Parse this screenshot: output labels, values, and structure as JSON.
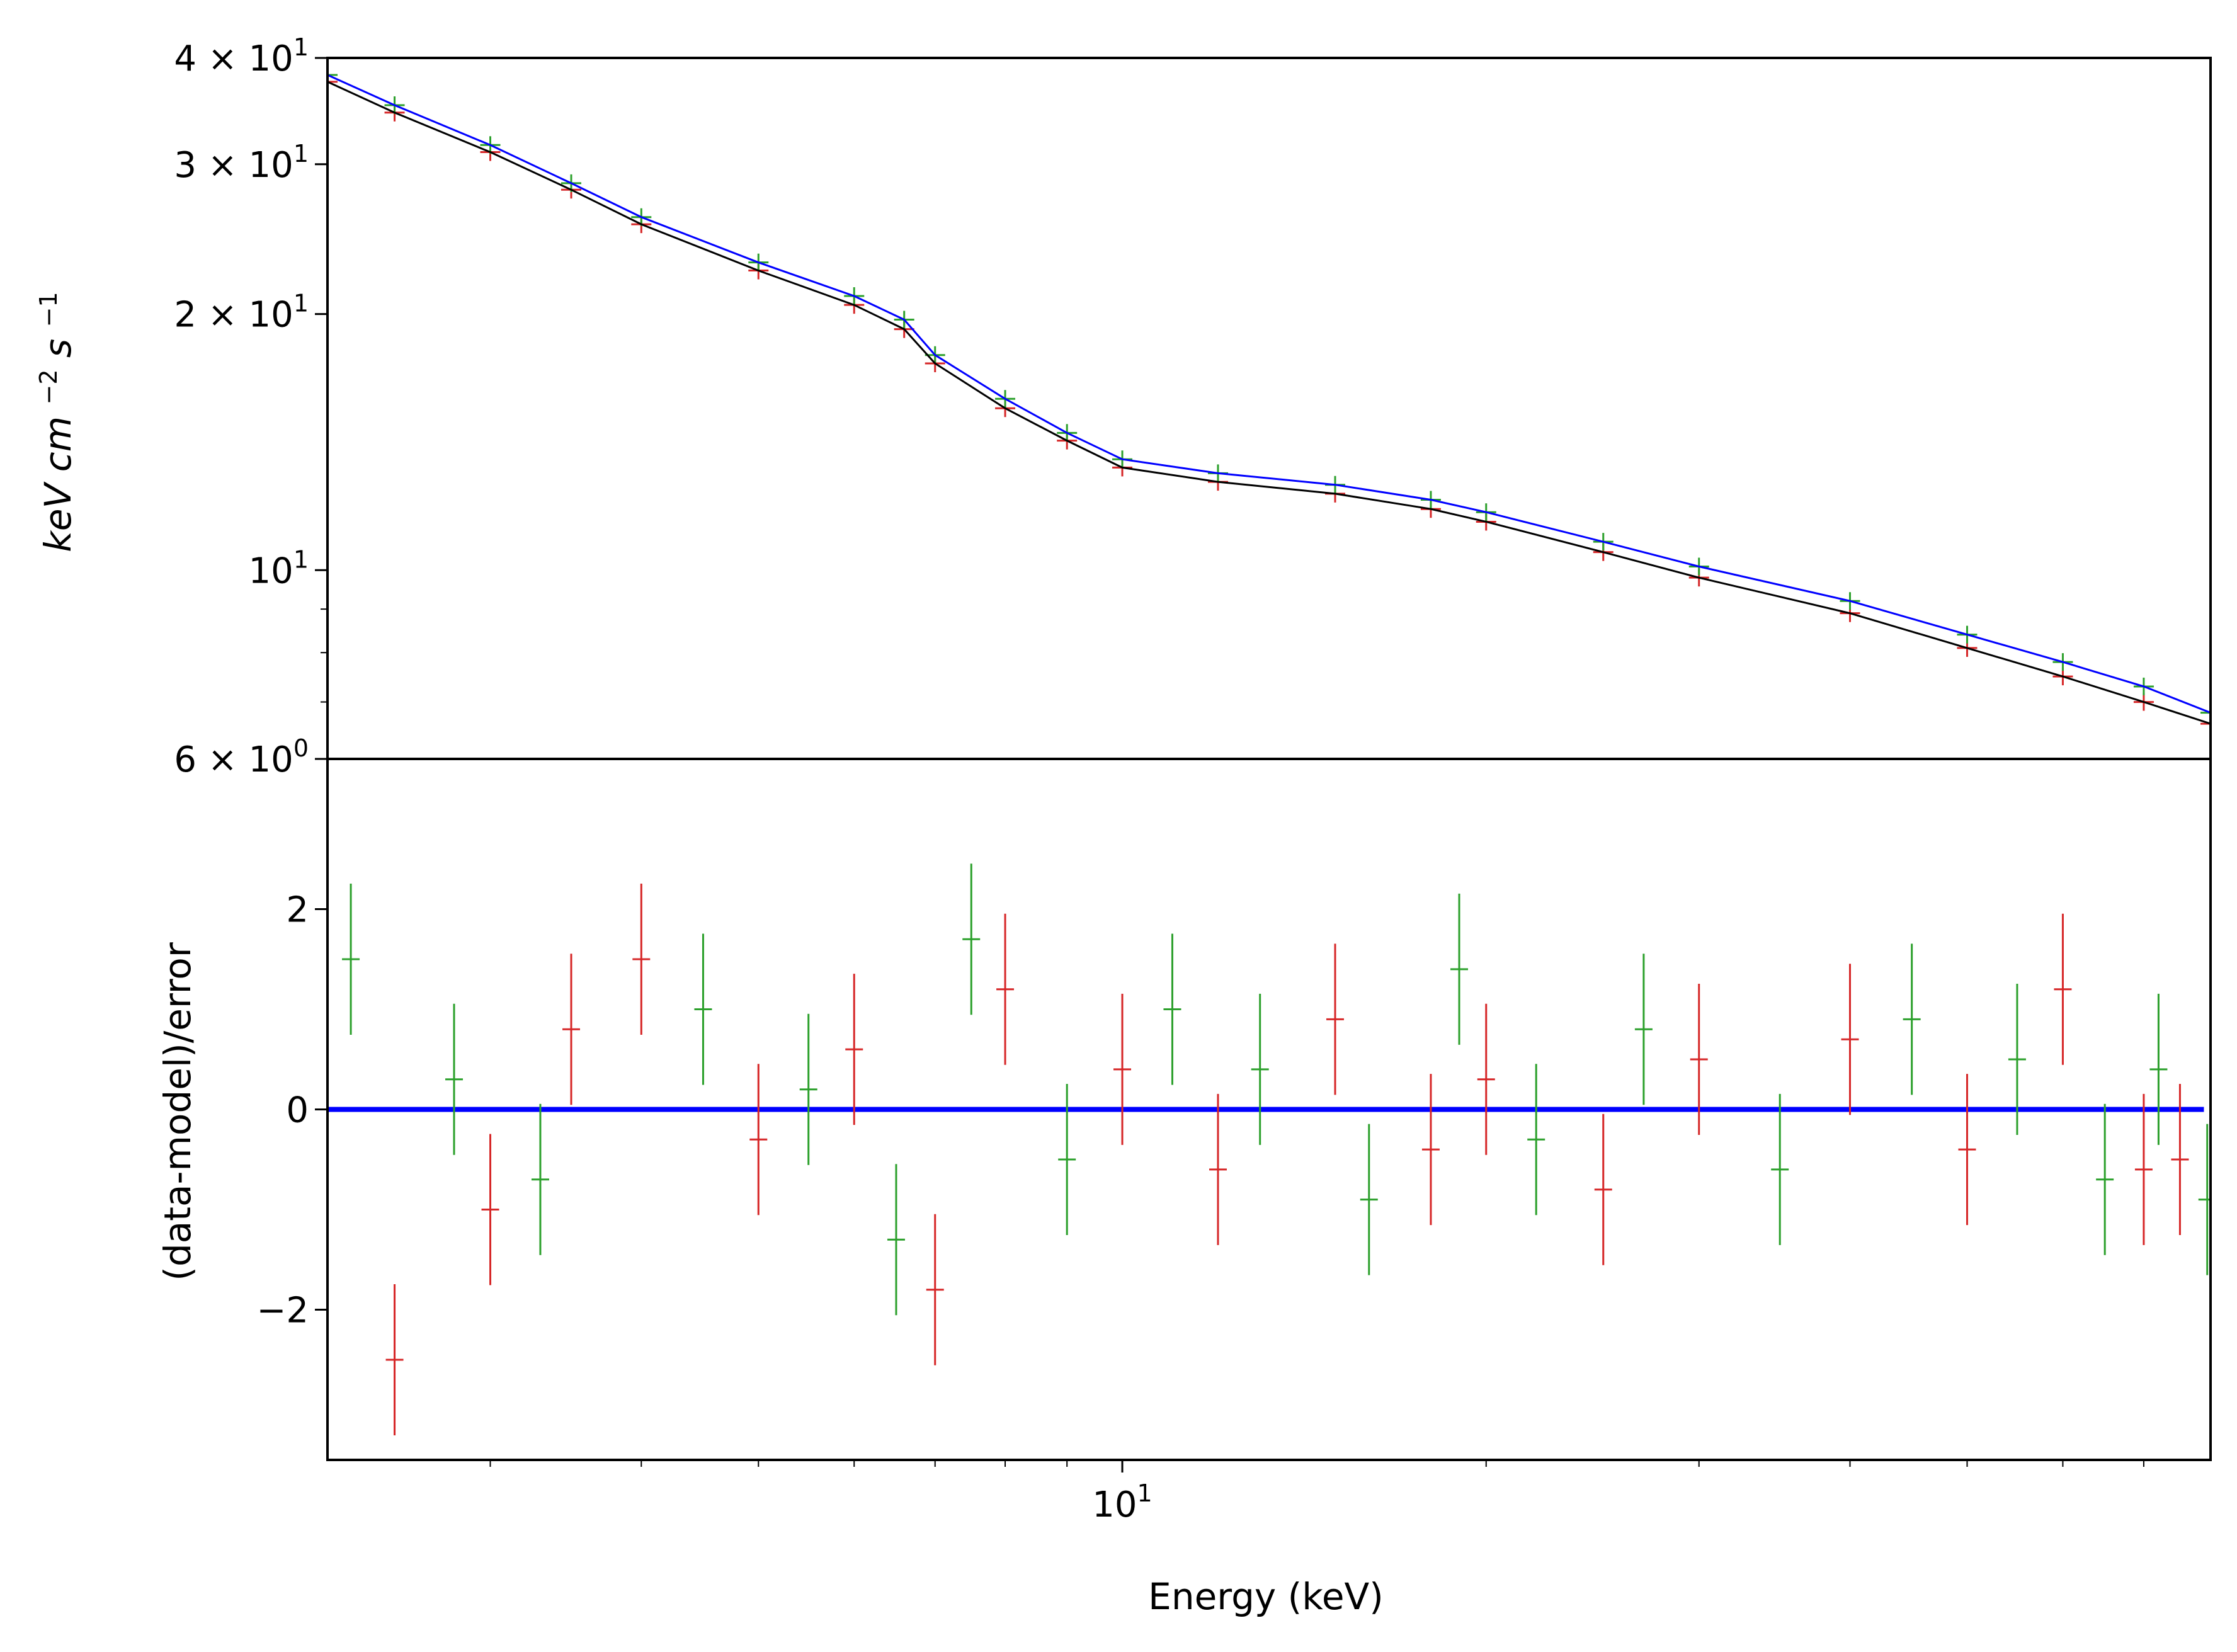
{
  "colors": {
    "series_a": "#d62728",
    "series_b": "#2ca02c",
    "model_a": "#000000",
    "model_b": "#0000ff",
    "zero_line": "#0000ff",
    "axes": "#000000"
  },
  "chart_data": [
    {
      "type": "scatter",
      "panel": "spectrum",
      "xlabel": "",
      "ylabel_parts": {
        "keV": "keV",
        "cm": "cm",
        "cm_exp": "−2",
        "s": "s",
        "s_exp": "−1"
      },
      "xscale": "log",
      "yscale": "log",
      "xlim": [
        2.2,
        79.5
      ],
      "ylim": [
        6,
        40
      ],
      "yticks": [
        {
          "value": 40,
          "label": {
            "mant": "4",
            "times": "×",
            "base": "10",
            "exp": "1"
          }
        },
        {
          "value": 30,
          "label": {
            "mant": "3",
            "times": "×",
            "base": "10",
            "exp": "1"
          }
        },
        {
          "value": 20,
          "label": {
            "mant": "2",
            "times": "×",
            "base": "10",
            "exp": "1"
          }
        },
        {
          "value": 10,
          "label": {
            "mant": "",
            "times": "",
            "base": "10",
            "exp": "1"
          }
        },
        {
          "value": 6,
          "label": {
            "mant": "6",
            "times": "×",
            "base": "10",
            "exp": "0"
          }
        }
      ],
      "series": [
        {
          "kind": "data",
          "color_key": "series_a",
          "x": [
            2.2,
            2.5,
            3.0,
            3.5,
            4.0,
            5.0,
            6.0,
            6.6,
            7.0,
            8.0,
            9.0,
            10.0,
            12.0,
            15.0,
            18.0,
            20.0,
            25.0,
            30.0,
            40.0,
            50.0,
            60.0,
            70.0,
            79.5
          ],
          "y": [
            37.5,
            34.5,
            31.0,
            28.0,
            25.5,
            22.5,
            20.5,
            19.2,
            17.5,
            15.5,
            14.2,
            13.2,
            12.7,
            12.3,
            11.8,
            11.4,
            10.5,
            9.8,
            8.9,
            8.1,
            7.5,
            7.0,
            6.6
          ]
        },
        {
          "kind": "data",
          "color_key": "series_b",
          "x": [
            2.2,
            2.5,
            3.0,
            3.5,
            4.0,
            5.0,
            6.0,
            6.6,
            7.0,
            8.0,
            9.0,
            10.0,
            12.0,
            15.0,
            18.0,
            20.0,
            25.0,
            30.0,
            40.0,
            50.0,
            60.0,
            70.0,
            79.5
          ],
          "y": [
            38.2,
            35.2,
            31.6,
            28.5,
            26.0,
            23.0,
            21.0,
            19.7,
            17.9,
            15.9,
            14.5,
            13.5,
            13.0,
            12.6,
            12.1,
            11.7,
            10.8,
            10.1,
            9.2,
            8.4,
            7.8,
            7.3,
            6.8
          ]
        },
        {
          "kind": "model",
          "color_key": "model_a",
          "x": [
            2.2,
            2.5,
            3.0,
            3.5,
            4.0,
            5.0,
            6.0,
            6.6,
            7.0,
            8.0,
            9.0,
            10.0,
            12.0,
            15.0,
            18.0,
            20.0,
            25.0,
            30.0,
            40.0,
            50.0,
            60.0,
            70.0,
            79.5
          ],
          "y": [
            37.5,
            34.5,
            31.0,
            28.0,
            25.5,
            22.5,
            20.5,
            19.2,
            17.5,
            15.5,
            14.2,
            13.2,
            12.7,
            12.3,
            11.8,
            11.4,
            10.5,
            9.8,
            8.9,
            8.1,
            7.5,
            7.0,
            6.6
          ]
        },
        {
          "kind": "model",
          "color_key": "model_b",
          "x": [
            2.2,
            2.5,
            3.0,
            3.5,
            4.0,
            5.0,
            6.0,
            6.6,
            7.0,
            8.0,
            9.0,
            10.0,
            12.0,
            15.0,
            18.0,
            20.0,
            25.0,
            30.0,
            40.0,
            50.0,
            60.0,
            70.0,
            79.5
          ],
          "y": [
            38.2,
            35.2,
            31.6,
            28.5,
            26.0,
            23.0,
            21.0,
            19.7,
            17.9,
            15.9,
            14.5,
            13.5,
            13.0,
            12.6,
            12.1,
            11.7,
            10.8,
            10.1,
            9.2,
            8.4,
            7.8,
            7.3,
            6.8
          ]
        }
      ]
    },
    {
      "type": "scatter",
      "panel": "residuals",
      "xlabel": "Energy (keV)",
      "ylabel": "(data-model)/error",
      "xscale": "log",
      "yscale": "linear",
      "xlim": [
        2.2,
        79.5
      ],
      "ylim": [
        -3.5,
        3.5
      ],
      "xticks": [
        {
          "value": 10,
          "label": {
            "base": "10",
            "exp": "1"
          }
        }
      ],
      "yticks": [
        {
          "value": 2,
          "label": "2"
        },
        {
          "value": 0,
          "label": "0"
        },
        {
          "value": -2,
          "label": "−2"
        }
      ],
      "series": [
        {
          "kind": "residuals",
          "color_key": "series_a",
          "x": [
            2.5,
            3.0,
            3.5,
            4.0,
            5.0,
            6.0,
            7.0,
            8.0,
            10.0,
            12.0,
            15.0,
            18.0,
            20.0,
            25.0,
            30.0,
            40.0,
            50.0,
            60.0,
            70.0,
            75.0
          ],
          "y": [
            -2.5,
            -1.0,
            0.8,
            1.5,
            -0.3,
            0.6,
            -1.8,
            1.2,
            0.4,
            -0.6,
            0.9,
            -0.4,
            0.3,
            -0.8,
            0.5,
            0.7,
            -0.4,
            1.2,
            -0.6,
            -0.5
          ]
        },
        {
          "kind": "residuals",
          "color_key": "series_b",
          "x": [
            2.3,
            2.8,
            3.3,
            4.5,
            5.5,
            6.5,
            7.5,
            9.0,
            11.0,
            13.0,
            16.0,
            19.0,
            22.0,
            27.0,
            35.0,
            45.0,
            55.0,
            65.0,
            72.0,
            79.0
          ],
          "y": [
            1.5,
            0.3,
            -0.7,
            1.0,
            0.2,
            -1.3,
            1.7,
            -0.5,
            1.0,
            0.4,
            -0.9,
            1.4,
            -0.3,
            0.8,
            -0.6,
            0.9,
            0.5,
            -0.7,
            0.4,
            -0.9
          ]
        }
      ],
      "zero_line": {
        "y": 0,
        "color_key": "zero_line"
      }
    }
  ]
}
